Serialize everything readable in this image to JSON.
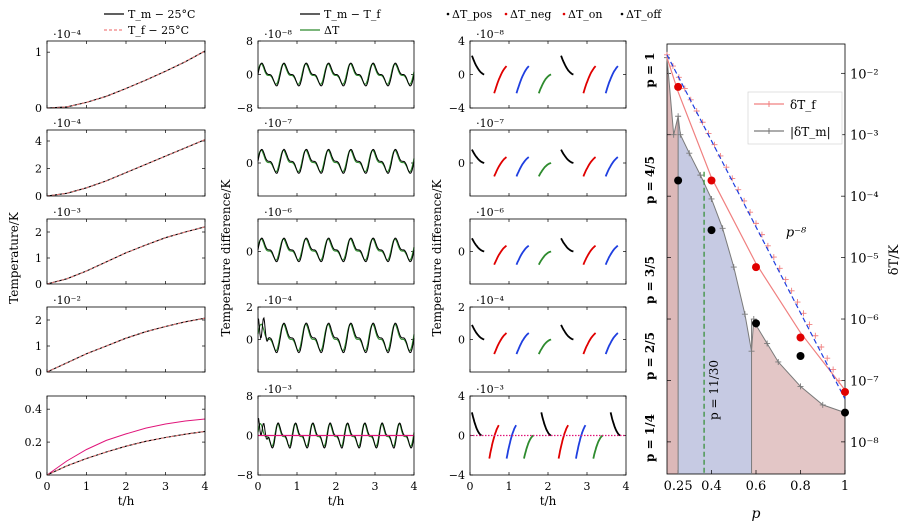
{
  "colors": {
    "black": "#000000",
    "pink_dashed": "#f08080",
    "magenta": "#e0157a",
    "green": "#2e8b2e",
    "red": "#e00000",
    "blue": "#1f3fe0",
    "gray": "#7a7a7a",
    "fill_red": "#d9b3b3",
    "fill_blue": "#b3b8d9"
  },
  "columns": {
    "temperature": {
      "ylabel": "Temperature/K",
      "xlabel": "t/h",
      "legend": [
        "T_m − 25°C",
        "T_f − 25°C"
      ]
    },
    "difference": {
      "ylabel": "Temperature difference/K",
      "xlabel": "t/h",
      "legend": [
        "T_m − T_f",
        "ΔT"
      ]
    },
    "decomposition": {
      "ylabel": "Temperature difference/K",
      "xlabel": "t/h",
      "legend": [
        "ΔT_pos",
        "ΔT_neg",
        "ΔT_on",
        "ΔT_off"
      ]
    }
  },
  "chart_data": [
    {
      "type": "line",
      "column": "temperature",
      "row": 1,
      "scale_label": "·10⁻⁴",
      "ylim": [
        0,
        1.2
      ],
      "yticks": [
        "0",
        "1"
      ],
      "x": [
        0,
        0.5,
        1,
        1.5,
        2,
        2.5,
        3,
        3.5,
        4
      ],
      "series": [
        {
          "name": "T_m − 25°C",
          "values": [
            0,
            0.02,
            0.1,
            0.21,
            0.35,
            0.5,
            0.66,
            0.83,
            1.02
          ]
        },
        {
          "name": "T_f − 25°C",
          "values": [
            0,
            0.02,
            0.1,
            0.21,
            0.35,
            0.5,
            0.66,
            0.83,
            1.02
          ]
        }
      ]
    },
    {
      "type": "line",
      "column": "temperature",
      "row": 2,
      "scale_label": "·10⁻⁴",
      "ylim": [
        0,
        4.8
      ],
      "yticks": [
        "0",
        "2",
        "4"
      ],
      "x": [
        0,
        0.5,
        1,
        1.5,
        2,
        2.5,
        3,
        3.5,
        4
      ],
      "series": [
        {
          "name": "T_m − 25°C",
          "values": [
            0,
            0.2,
            0.6,
            1.1,
            1.7,
            2.3,
            2.9,
            3.5,
            4.1
          ]
        },
        {
          "name": "T_f − 25°C",
          "values": [
            0,
            0.2,
            0.6,
            1.1,
            1.7,
            2.3,
            2.9,
            3.5,
            4.1
          ]
        }
      ]
    },
    {
      "type": "line",
      "column": "temperature",
      "row": 3,
      "scale_label": "·10⁻³",
      "ylim": [
        0,
        2.5
      ],
      "yticks": [
        "0",
        "1",
        "2"
      ],
      "x": [
        0,
        0.5,
        1,
        1.5,
        2,
        2.5,
        3,
        3.5,
        4
      ],
      "series": [
        {
          "name": "T_m − 25°C",
          "values": [
            0,
            0.2,
            0.5,
            0.85,
            1.2,
            1.5,
            1.78,
            2.0,
            2.2
          ]
        },
        {
          "name": "T_f − 25°C",
          "values": [
            0,
            0.2,
            0.5,
            0.85,
            1.2,
            1.5,
            1.78,
            2.0,
            2.2
          ]
        }
      ]
    },
    {
      "type": "line",
      "column": "temperature",
      "row": 4,
      "scale_label": "·10⁻²",
      "ylim": [
        0,
        2.5
      ],
      "yticks": [
        "0",
        "1",
        "2"
      ],
      "x": [
        0,
        0.5,
        1,
        1.5,
        2,
        2.5,
        3,
        3.5,
        4
      ],
      "series": [
        {
          "name": "T_m − 25°C",
          "values": [
            0,
            0.35,
            0.7,
            1.0,
            1.3,
            1.55,
            1.75,
            1.93,
            2.07
          ]
        },
        {
          "name": "T_f − 25°C",
          "values": [
            0,
            0.35,
            0.7,
            1.0,
            1.3,
            1.55,
            1.75,
            1.93,
            2.07
          ]
        }
      ]
    },
    {
      "type": "line",
      "column": "temperature",
      "row": 5,
      "scale_label": "",
      "ylim": [
        0,
        0.48
      ],
      "yticks": [
        "0",
        "0.2",
        "0.4"
      ],
      "xticks": [
        "0",
        "1",
        "2",
        "3",
        "4"
      ],
      "x": [
        0,
        0.5,
        1,
        1.5,
        2,
        2.5,
        3,
        3.5,
        4
      ],
      "series": [
        {
          "name": "T_m − 25°C",
          "values": [
            0,
            0.055,
            0.1,
            0.14,
            0.175,
            0.205,
            0.228,
            0.248,
            0.265
          ]
        },
        {
          "name": "T_f − 25°C",
          "values": [
            0,
            0.055,
            0.1,
            0.14,
            0.175,
            0.205,
            0.228,
            0.248,
            0.265
          ]
        },
        {
          "name": "",
          "values": [
            0,
            0.085,
            0.155,
            0.21,
            0.25,
            0.285,
            0.31,
            0.328,
            0.34
          ]
        }
      ]
    },
    {
      "type": "line",
      "column": "difference",
      "row": 1,
      "scale_label": "·10⁻⁸",
      "ylim": [
        -8,
        8
      ],
      "yticks": [
        "−8",
        "0",
        "8"
      ],
      "x_range": [
        0,
        4
      ],
      "periods": 7,
      "amplitude": 3,
      "offset": 0,
      "series": [
        {
          "name": "T_m − T_f"
        },
        {
          "name": "ΔT"
        }
      ]
    },
    {
      "type": "line",
      "column": "difference",
      "row": 2,
      "scale_label": "·10⁻⁷",
      "ylim": [
        -4,
        4
      ],
      "yticks": [
        "0"
      ],
      "x_range": [
        0,
        4
      ],
      "periods": 7,
      "amplitude": 1.6,
      "offset": 0.2,
      "series": [
        {
          "name": "T_m − T_f"
        },
        {
          "name": "ΔT"
        }
      ]
    },
    {
      "type": "line",
      "column": "difference",
      "row": 3,
      "scale_label": "·10⁻⁶",
      "ylim": [
        -4,
        4
      ],
      "yticks": [
        "0"
      ],
      "x_range": [
        0,
        4
      ],
      "periods": 7,
      "amplitude": 1.6,
      "offset": 0.2,
      "series": [
        {
          "name": "T_m − T_f"
        },
        {
          "name": "ΔT"
        }
      ]
    },
    {
      "type": "line",
      "column": "difference",
      "row": 4,
      "scale_label": "·10⁻⁴",
      "ylim": [
        -2,
        2
      ],
      "yticks": [
        "0",
        "2"
      ],
      "x_range": [
        0,
        4
      ],
      "periods": 7,
      "amplitude": 1.0,
      "offset": 0.1,
      "series": [
        {
          "name": "T_m − T_f"
        },
        {
          "name": "ΔT"
        }
      ]
    },
    {
      "type": "line",
      "column": "difference",
      "row": 5,
      "scale_label": "·10⁻³",
      "ylim": [
        -8,
        8
      ],
      "yticks": [
        "−8",
        "0",
        "8"
      ],
      "xticks": [
        "0",
        "1",
        "2",
        "3",
        "4"
      ],
      "x_range": [
        0,
        4
      ],
      "periods": 9,
      "amplitude": 2.8,
      "offset": 0,
      "series": [
        {
          "name": "T_m − T_f"
        },
        {
          "name": "ΔT"
        }
      ]
    },
    {
      "type": "line",
      "column": "decomposition",
      "row": 1,
      "scale_label": "·10⁻⁸",
      "ylim": [
        -4,
        4
      ],
      "yticks": [
        "−4",
        "0",
        "4"
      ],
      "x_range": [
        0,
        4
      ],
      "periods": 7,
      "amplitude": 2.5,
      "offset": 0,
      "series": [
        {
          "name": "ΔT_pos"
        },
        {
          "name": "ΔT_neg"
        },
        {
          "name": "ΔT_on"
        },
        {
          "name": "ΔT_off"
        }
      ]
    },
    {
      "type": "line",
      "column": "decomposition",
      "row": 2,
      "scale_label": "·10⁻⁷",
      "ylim": [
        -4,
        4
      ],
      "yticks": [
        "0"
      ],
      "x_range": [
        0,
        4
      ],
      "periods": 7,
      "amplitude": 1.8,
      "offset": 0,
      "series": [
        {
          "name": "ΔT_pos"
        },
        {
          "name": "ΔT_neg"
        },
        {
          "name": "ΔT_on"
        },
        {
          "name": "ΔT_off"
        }
      ]
    },
    {
      "type": "line",
      "column": "decomposition",
      "row": 3,
      "scale_label": "·10⁻⁶",
      "ylim": [
        -4,
        4
      ],
      "yticks": [
        "0"
      ],
      "x_range": [
        0,
        4
      ],
      "periods": 7,
      "amplitude": 1.8,
      "offset": 0,
      "series": [
        {
          "name": "ΔT_pos"
        },
        {
          "name": "ΔT_neg"
        },
        {
          "name": "ΔT_on"
        },
        {
          "name": "ΔT_off"
        }
      ]
    },
    {
      "type": "line",
      "column": "decomposition",
      "row": 4,
      "scale_label": "·10⁻⁴",
      "ylim": [
        -2,
        2
      ],
      "yticks": [
        "0",
        "2"
      ],
      "x_range": [
        0,
        4
      ],
      "periods": 7,
      "amplitude": 1.0,
      "offset": 0,
      "series": [
        {
          "name": "ΔT_pos"
        },
        {
          "name": "ΔT_neg"
        },
        {
          "name": "ΔT_on"
        },
        {
          "name": "ΔT_off"
        }
      ]
    },
    {
      "type": "line",
      "column": "decomposition",
      "row": 5,
      "scale_label": "·10⁻³",
      "ylim": [
        -4,
        4
      ],
      "yticks": [
        "−4",
        "0",
        "4"
      ],
      "xticks": [
        "0",
        "1",
        "2",
        "3",
        "4"
      ],
      "x_range": [
        0,
        4
      ],
      "periods": 9,
      "amplitude": 2.6,
      "offset": 0,
      "series": [
        {
          "name": "ΔT_pos"
        },
        {
          "name": "ΔT_neg"
        },
        {
          "name": "ΔT_on"
        },
        {
          "name": "ΔT_off"
        }
      ]
    },
    {
      "type": "line",
      "column": "convergence",
      "xlabel": "p",
      "ylabel": "δT/K",
      "y_scale": "log",
      "ylim": [
        3e-09,
        0.03
      ],
      "xticks": [
        "0.25",
        "0.4",
        "0.6",
        "0.8",
        "1"
      ],
      "yticks": [
        "10⁻²",
        "10⁻³",
        "10⁻⁴",
        "10⁻⁵",
        "10⁻⁶",
        "10⁻⁷",
        "10⁻⁸"
      ],
      "legend": [
        "δT_f",
        "|δT_m|"
      ],
      "annotation_power": "p⁻⁸",
      "annotation_vertical": "p = 11/30",
      "region_labels": [
        "p = 1",
        "p = 4/5",
        "p = 3/5",
        "p = 2/5",
        "p = 1/4"
      ],
      "series": [
        {
          "name": "δT_f",
          "x": [
            0.2,
            0.25,
            0.4,
            0.6,
            0.8,
            1.0
          ],
          "values": [
            0.018,
            0.005,
            0.0002,
            8e-06,
            6e-07,
            7e-08
          ]
        },
        {
          "name": "|δT_m|",
          "x": [
            0.2,
            0.23,
            0.25,
            0.26,
            0.3,
            0.35,
            0.4,
            0.45,
            0.5,
            0.55,
            0.58,
            0.59,
            0.6,
            0.65,
            0.7,
            0.8,
            0.9,
            1.0
          ],
          "values": [
            0.018,
            0.001,
            0.002,
            0.001,
            0.0005,
            0.00022,
            9e-05,
            3e-05,
            7e-06,
            1.2e-06,
            3e-07,
            1e-06,
            8e-07,
            4e-07,
            2e-07,
            8e-08,
            4e-08,
            3e-08
          ]
        },
        {
          "name": "red markers",
          "x": [
            0.25,
            0.4,
            0.6,
            0.8,
            1.0
          ],
          "values": [
            0.006,
            0.00018,
            7e-06,
            5e-07,
            6.5e-08
          ]
        },
        {
          "name": "black markers",
          "x": [
            0.25,
            0.4,
            0.6,
            0.8,
            1.0
          ],
          "values": [
            0.00018,
            2.8e-05,
            8.5e-07,
            2.5e-07,
            3e-08
          ]
        },
        {
          "name": "p⁻⁸",
          "x": [
            0.2,
            1.0
          ],
          "values": [
            0.02,
            5e-08
          ]
        }
      ]
    }
  ]
}
